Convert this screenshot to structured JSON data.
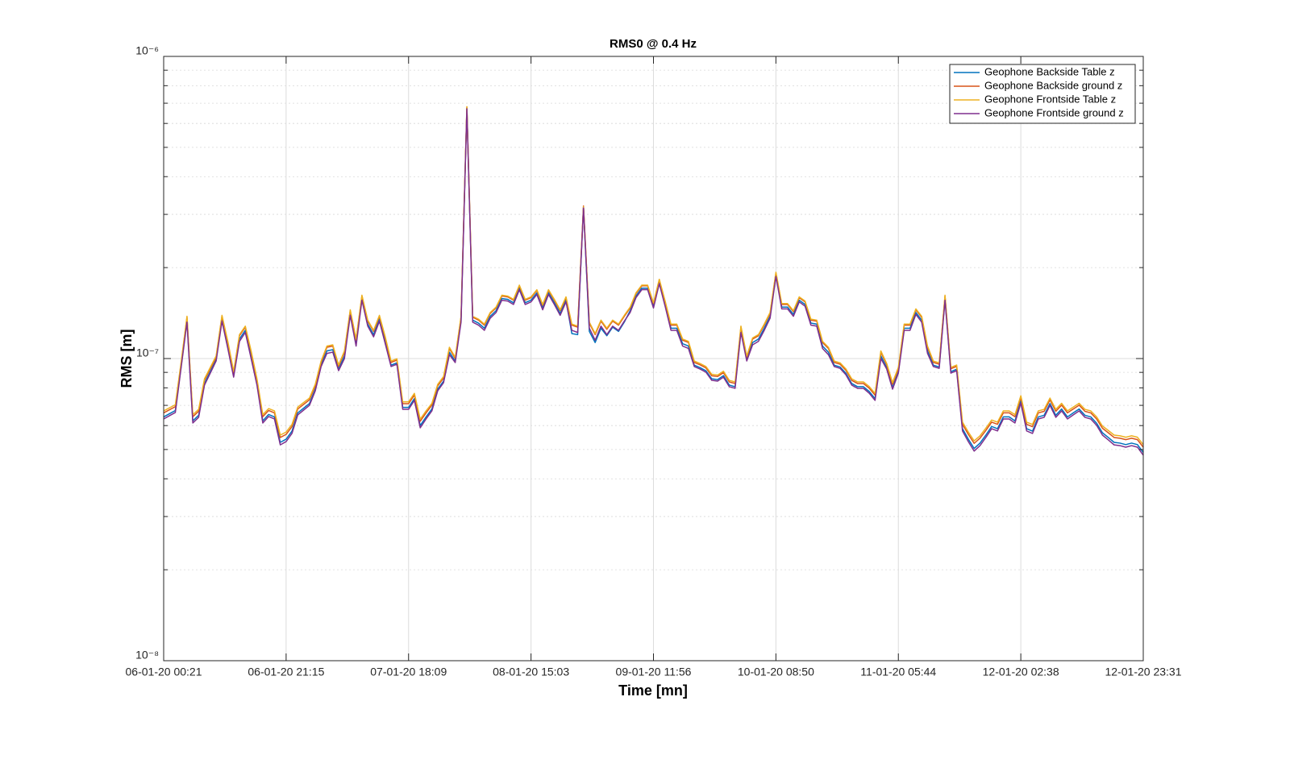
{
  "chart_data": {
    "type": "line",
    "title": "RMS0 @ 0.4 Hz",
    "x_label": "Time [mn]",
    "y_label": "RMS [m]",
    "log_y": true,
    "grid": true,
    "minor_grid": true,
    "legend": "upper right",
    "ylim": [
      1e-08,
      1e-06
    ],
    "yticks": [
      {
        "value": 1e-08,
        "label": "10⁻⁸"
      },
      {
        "value": 1e-07,
        "label": "10⁻⁷"
      },
      {
        "value": 1e-06,
        "label": "10⁻⁶"
      }
    ],
    "categories": [
      "06-01-20 00:21",
      null,
      null,
      null,
      null,
      null,
      null,
      null,
      null,
      null,
      null,
      null,
      null,
      null,
      null,
      null,
      null,
      null,
      null,
      null,
      null,
      "06-01-20 21:15",
      null,
      null,
      null,
      null,
      null,
      null,
      null,
      null,
      null,
      null,
      null,
      null,
      null,
      null,
      null,
      null,
      null,
      null,
      null,
      null,
      "07-01-20 18:09",
      null,
      null,
      null,
      null,
      null,
      null,
      null,
      null,
      null,
      null,
      null,
      null,
      null,
      null,
      null,
      null,
      null,
      null,
      null,
      null,
      "08-01-20 15:03",
      null,
      null,
      null,
      null,
      null,
      null,
      null,
      null,
      null,
      null,
      null,
      null,
      null,
      null,
      null,
      null,
      null,
      null,
      null,
      null,
      "09-01-20 11:56",
      null,
      null,
      null,
      null,
      null,
      null,
      null,
      null,
      null,
      null,
      null,
      null,
      null,
      null,
      null,
      null,
      null,
      null,
      null,
      null,
      "10-01-20 08:50",
      null,
      null,
      null,
      null,
      null,
      null,
      null,
      null,
      null,
      null,
      null,
      null,
      null,
      null,
      null,
      null,
      null,
      null,
      null,
      null,
      "11-01-20 05:44",
      null,
      null,
      null,
      null,
      null,
      null,
      null,
      null,
      null,
      null,
      null,
      null,
      null,
      null,
      null,
      null,
      null,
      null,
      null,
      null,
      "12-01-20 02:38",
      null,
      null,
      null,
      null,
      null,
      null,
      null,
      null,
      null,
      null,
      null,
      null,
      null,
      null,
      null,
      null,
      null,
      null,
      null,
      null,
      "12-01-20 23:31"
    ],
    "series": [
      {
        "name": "Geophone Backside Table z",
        "color": "#0072bd",
        "values": [
          6.41e-08,
          6.57e-08,
          6.73e-08,
          9.45e-08,
          1.34e-07,
          6.22e-08,
          6.49e-08,
          8.27e-08,
          9.05e-08,
          9.92e-08,
          1.35e-07,
          1.1e-07,
          8.78e-08,
          1.16e-07,
          1.24e-07,
          1.02e-07,
          8.27e-08,
          6.22e-08,
          6.53e-08,
          6.41e-08,
          5.28e-08,
          5.41e-08,
          5.75e-08,
          6.61e-08,
          6.85e-08,
          7.1e-08,
          7.92e-08,
          9.51e-08,
          1.06e-07,
          1.07e-07,
          9.22e-08,
          1.02e-07,
          1.41e-07,
          1.12e-07,
          1.58e-07,
          1.3e-07,
          1.2e-07,
          1.35e-07,
          1.14e-07,
          9.51e-08,
          9.68e-08,
          6.89e-08,
          6.89e-08,
          7.37e-08,
          6e-08,
          6.41e-08,
          6.81e-08,
          7.92e-08,
          8.42e-08,
          1.05e-07,
          9.8e-08,
          1.34e-07,
          6.73e-07,
          1.34e-07,
          1.31e-07,
          1.26e-07,
          1.38e-07,
          1.44e-07,
          1.58e-07,
          1.57e-07,
          1.53e-07,
          1.71e-07,
          1.53e-07,
          1.56e-07,
          1.65e-07,
          1.47e-07,
          1.65e-07,
          1.53e-07,
          1.41e-07,
          1.56e-07,
          1.21e-07,
          1.2e-07,
          3.17e-07,
          1.23e-07,
          1.13e-07,
          1.26e-07,
          1.19e-07,
          1.27e-07,
          1.23e-07,
          1.32e-07,
          1.44e-07,
          1.61e-07,
          1.71e-07,
          1.71e-07,
          1.49e-07,
          1.79e-07,
          1.51e-07,
          1.26e-07,
          1.26e-07,
          1.12e-07,
          1.1e-07,
          9.51e-08,
          9.33e-08,
          9.11e-08,
          8.57e-08,
          8.52e-08,
          8.78e-08,
          8.17e-08,
          8.07e-08,
          1.24e-07,
          9.92e-08,
          1.13e-07,
          1.16e-07,
          1.26e-07,
          1.38e-07,
          1.89e-07,
          1.48e-07,
          1.48e-07,
          1.4e-07,
          1.56e-07,
          1.51e-07,
          1.31e-07,
          1.3e-07,
          1.1e-07,
          1.05e-07,
          9.51e-08,
          9.38e-08,
          8.94e-08,
          8.27e-08,
          8.07e-08,
          8.07e-08,
          7.78e-08,
          7.37e-08,
          1.02e-07,
          9.33e-08,
          8.02e-08,
          9.05e-08,
          1.26e-07,
          1.26e-07,
          1.42e-07,
          1.34e-07,
          1.06e-07,
          9.51e-08,
          9.38e-08,
          1.58e-07,
          9.05e-08,
          9.22e-08,
          5.86e-08,
          5.41e-08,
          5.04e-08,
          5.25e-08,
          5.58e-08,
          5.96e-08,
          5.86e-08,
          6.41e-08,
          6.41e-08,
          6.22e-08,
          7.23e-08,
          5.86e-08,
          5.75e-08,
          6.41e-08,
          6.49e-08,
          7.1e-08,
          6.49e-08,
          6.81e-08,
          6.41e-08,
          6.61e-08,
          6.81e-08,
          6.49e-08,
          6.41e-08,
          6.11e-08,
          5.68e-08,
          5.48e-08,
          5.28e-08,
          5.25e-08,
          5.19e-08,
          5.25e-08,
          5.19e-08,
          4.89e-08
        ]
      },
      {
        "name": "Geophone Backside ground z",
        "color": "#d95319",
        "values": [
          6.61e-08,
          6.77e-08,
          6.93e-08,
          9.65e-08,
          1.37e-07,
          6.42e-08,
          6.69e-08,
          8.47e-08,
          9.25e-08,
          1.01e-07,
          1.38e-07,
          1.13e-07,
          8.98e-08,
          1.19e-07,
          1.27e-07,
          1.05e-07,
          8.47e-08,
          6.42e-08,
          6.73e-08,
          6.61e-08,
          5.48e-08,
          5.61e-08,
          5.95e-08,
          6.81e-08,
          7.05e-08,
          7.3e-08,
          8.12e-08,
          9.71e-08,
          1.09e-07,
          1.1e-07,
          9.42e-08,
          1.05e-07,
          1.44e-07,
          1.15e-07,
          1.61e-07,
          1.33e-07,
          1.23e-07,
          1.38e-07,
          1.17e-07,
          9.71e-08,
          9.88e-08,
          7.09e-08,
          7.09e-08,
          7.57e-08,
          6.2e-08,
          6.61e-08,
          7.01e-08,
          8.12e-08,
          8.62e-08,
          1.08e-07,
          1e-07,
          1.37e-07,
          6.8e-07,
          1.37e-07,
          1.34e-07,
          1.29e-07,
          1.41e-07,
          1.47e-07,
          1.61e-07,
          1.6e-07,
          1.56e-07,
          1.74e-07,
          1.56e-07,
          1.59e-07,
          1.68e-07,
          1.5e-07,
          1.68e-07,
          1.56e-07,
          1.44e-07,
          1.59e-07,
          1.29e-07,
          1.27e-07,
          3.2e-07,
          1.31e-07,
          1.2e-07,
          1.33e-07,
          1.25e-07,
          1.33e-07,
          1.29e-07,
          1.38e-07,
          1.47e-07,
          1.64e-07,
          1.74e-07,
          1.74e-07,
          1.52e-07,
          1.82e-07,
          1.54e-07,
          1.29e-07,
          1.29e-07,
          1.15e-07,
          1.13e-07,
          9.71e-08,
          9.53e-08,
          9.31e-08,
          8.77e-08,
          8.72e-08,
          8.98e-08,
          8.37e-08,
          8.27e-08,
          1.27e-07,
          1.01e-07,
          1.16e-07,
          1.19e-07,
          1.29e-07,
          1.41e-07,
          1.92e-07,
          1.51e-07,
          1.51e-07,
          1.43e-07,
          1.59e-07,
          1.54e-07,
          1.34e-07,
          1.33e-07,
          1.13e-07,
          1.08e-07,
          9.71e-08,
          9.58e-08,
          9.14e-08,
          8.47e-08,
          8.27e-08,
          8.27e-08,
          7.98e-08,
          7.57e-08,
          1.05e-07,
          9.53e-08,
          8.22e-08,
          9.25e-08,
          1.29e-07,
          1.29e-07,
          1.45e-07,
          1.37e-07,
          1.09e-07,
          9.71e-08,
          9.58e-08,
          1.61e-07,
          9.25e-08,
          9.42e-08,
          6.06e-08,
          5.61e-08,
          5.24e-08,
          5.45e-08,
          5.78e-08,
          6.16e-08,
          6.06e-08,
          6.61e-08,
          6.61e-08,
          6.42e-08,
          7.43e-08,
          6.06e-08,
          5.95e-08,
          6.61e-08,
          6.69e-08,
          7.3e-08,
          6.69e-08,
          7.01e-08,
          6.61e-08,
          6.81e-08,
          7.01e-08,
          6.69e-08,
          6.61e-08,
          6.31e-08,
          5.88e-08,
          5.68e-08,
          5.48e-08,
          5.45e-08,
          5.39e-08,
          5.45e-08,
          5.39e-08,
          5.09e-08
        ]
      },
      {
        "name": "Geophone Frontside Table z",
        "color": "#edb120",
        "values": [
          6.71e-08,
          6.87e-08,
          7.03e-08,
          9.75e-08,
          1.38e-07,
          6.52e-08,
          6.79e-08,
          8.57e-08,
          9.35e-08,
          1.02e-07,
          1.39e-07,
          1.14e-07,
          9.08e-08,
          1.2e-07,
          1.28e-07,
          1.06e-07,
          8.57e-08,
          6.52e-08,
          6.83e-08,
          6.71e-08,
          5.58e-08,
          5.71e-08,
          6.05e-08,
          6.91e-08,
          7.15e-08,
          7.4e-08,
          8.22e-08,
          9.81e-08,
          1.1e-07,
          1.11e-07,
          9.52e-08,
          1.06e-07,
          1.45e-07,
          1.16e-07,
          1.62e-07,
          1.34e-07,
          1.24e-07,
          1.39e-07,
          1.18e-07,
          9.81e-08,
          9.98e-08,
          7.19e-08,
          7.19e-08,
          7.67e-08,
          6.3e-08,
          6.71e-08,
          7.11e-08,
          8.22e-08,
          8.72e-08,
          1.09e-07,
          1.01e-07,
          1.38e-07,
          6.82e-07,
          1.38e-07,
          1.35e-07,
          1.3e-07,
          1.42e-07,
          1.48e-07,
          1.62e-07,
          1.61e-07,
          1.57e-07,
          1.75e-07,
          1.57e-07,
          1.6e-07,
          1.69e-07,
          1.51e-07,
          1.69e-07,
          1.57e-07,
          1.45e-07,
          1.6e-07,
          1.3e-07,
          1.28e-07,
          3.18e-07,
          1.32e-07,
          1.21e-07,
          1.34e-07,
          1.26e-07,
          1.34e-07,
          1.3e-07,
          1.39e-07,
          1.48e-07,
          1.65e-07,
          1.75e-07,
          1.75e-07,
          1.53e-07,
          1.83e-07,
          1.55e-07,
          1.3e-07,
          1.3e-07,
          1.16e-07,
          1.14e-07,
          9.81e-08,
          9.63e-08,
          9.41e-08,
          8.87e-08,
          8.82e-08,
          9.08e-08,
          8.47e-08,
          8.37e-08,
          1.28e-07,
          1.02e-07,
          1.17e-07,
          1.2e-07,
          1.3e-07,
          1.42e-07,
          1.93e-07,
          1.52e-07,
          1.52e-07,
          1.44e-07,
          1.6e-07,
          1.55e-07,
          1.35e-07,
          1.34e-07,
          1.14e-07,
          1.09e-07,
          9.81e-08,
          9.68e-08,
          9.24e-08,
          8.57e-08,
          8.37e-08,
          8.37e-08,
          8.08e-08,
          7.67e-08,
          1.06e-07,
          9.63e-08,
          8.32e-08,
          9.35e-08,
          1.3e-07,
          1.3e-07,
          1.46e-07,
          1.38e-07,
          1.1e-07,
          9.81e-08,
          9.68e-08,
          1.62e-07,
          9.35e-08,
          9.52e-08,
          6.16e-08,
          5.71e-08,
          5.34e-08,
          5.55e-08,
          5.88e-08,
          6.26e-08,
          6.16e-08,
          6.71e-08,
          6.71e-08,
          6.52e-08,
          7.53e-08,
          6.16e-08,
          6.05e-08,
          6.71e-08,
          6.79e-08,
          7.4e-08,
          6.79e-08,
          7.11e-08,
          6.71e-08,
          6.91e-08,
          7.11e-08,
          6.79e-08,
          6.71e-08,
          6.41e-08,
          5.98e-08,
          5.78e-08,
          5.58e-08,
          5.55e-08,
          5.49e-08,
          5.55e-08,
          5.49e-08,
          5.19e-08
        ]
      },
      {
        "name": "Geophone Frontside ground z",
        "color": "#7e2f8e",
        "values": [
          6.31e-08,
          6.47e-08,
          6.63e-08,
          9.35e-08,
          1.32e-07,
          6.12e-08,
          6.39e-08,
          8.17e-08,
          8.95e-08,
          9.82e-08,
          1.33e-07,
          1.08e-07,
          8.68e-08,
          1.14e-07,
          1.22e-07,
          1e-07,
          8.17e-08,
          6.12e-08,
          6.43e-08,
          6.31e-08,
          5.18e-08,
          5.31e-08,
          5.65e-08,
          6.51e-08,
          6.75e-08,
          7e-08,
          7.82e-08,
          9.41e-08,
          1.04e-07,
          1.05e-07,
          9.12e-08,
          1e-07,
          1.39e-07,
          1.1e-07,
          1.56e-07,
          1.28e-07,
          1.18e-07,
          1.33e-07,
          1.12e-07,
          9.41e-08,
          9.58e-08,
          6.79e-08,
          6.79e-08,
          7.27e-08,
          5.9e-08,
          6.31e-08,
          6.71e-08,
          7.82e-08,
          8.32e-08,
          1.03e-07,
          9.7e-08,
          1.32e-07,
          6.71e-07,
          1.32e-07,
          1.29e-07,
          1.24e-07,
          1.36e-07,
          1.42e-07,
          1.56e-07,
          1.55e-07,
          1.51e-07,
          1.69e-07,
          1.51e-07,
          1.54e-07,
          1.63e-07,
          1.45e-07,
          1.63e-07,
          1.51e-07,
          1.39e-07,
          1.54e-07,
          1.24e-07,
          1.22e-07,
          3.15e-07,
          1.26e-07,
          1.15e-07,
          1.28e-07,
          1.2e-07,
          1.28e-07,
          1.24e-07,
          1.33e-07,
          1.42e-07,
          1.59e-07,
          1.69e-07,
          1.69e-07,
          1.47e-07,
          1.77e-07,
          1.49e-07,
          1.24e-07,
          1.24e-07,
          1.1e-07,
          1.08e-07,
          9.41e-08,
          9.23e-08,
          9.01e-08,
          8.47e-08,
          8.42e-08,
          8.68e-08,
          8.07e-08,
          7.97e-08,
          1.22e-07,
          9.82e-08,
          1.11e-07,
          1.14e-07,
          1.24e-07,
          1.36e-07,
          1.87e-07,
          1.46e-07,
          1.46e-07,
          1.38e-07,
          1.54e-07,
          1.49e-07,
          1.29e-07,
          1.28e-07,
          1.08e-07,
          1.03e-07,
          9.41e-08,
          9.28e-08,
          8.84e-08,
          8.17e-08,
          7.97e-08,
          7.97e-08,
          7.68e-08,
          7.27e-08,
          1e-07,
          9.23e-08,
          7.92e-08,
          8.95e-08,
          1.24e-07,
          1.24e-07,
          1.4e-07,
          1.32e-07,
          1.04e-07,
          9.41e-08,
          9.28e-08,
          1.56e-07,
          8.95e-08,
          9.12e-08,
          5.76e-08,
          5.31e-08,
          4.94e-08,
          5.15e-08,
          5.48e-08,
          5.86e-08,
          5.76e-08,
          6.31e-08,
          6.31e-08,
          6.12e-08,
          7.13e-08,
          5.76e-08,
          5.65e-08,
          6.31e-08,
          6.39e-08,
          7e-08,
          6.39e-08,
          6.71e-08,
          6.31e-08,
          6.51e-08,
          6.71e-08,
          6.39e-08,
          6.31e-08,
          6.01e-08,
          5.58e-08,
          5.38e-08,
          5.18e-08,
          5.15e-08,
          5.09e-08,
          5.15e-08,
          5.09e-08,
          4.79e-08
        ]
      }
    ]
  }
}
